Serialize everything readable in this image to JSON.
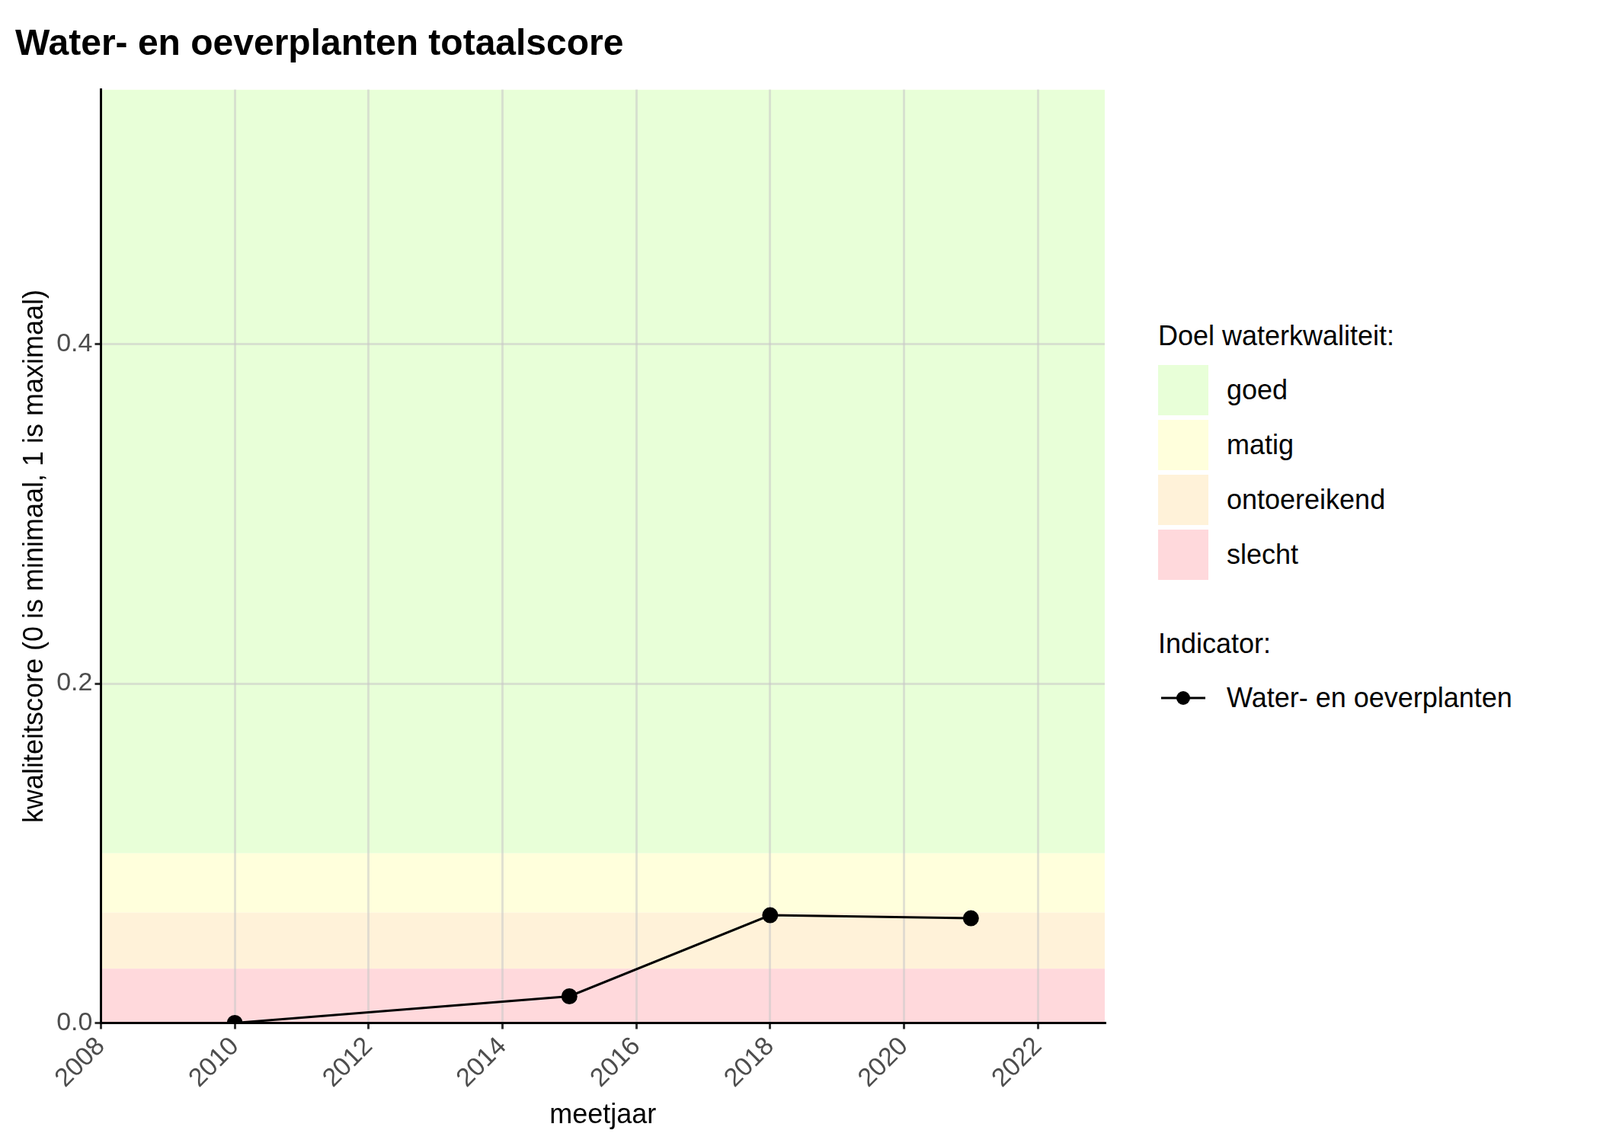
{
  "chart_data": {
    "type": "line",
    "title": "Water- en oeverplanten totaalscore",
    "x_label": "meetjaar",
    "y_label": "kwaliteitscore (0 is minimaal, 1 is maximaal)",
    "x": [
      2010,
      2015,
      2018,
      2021
    ],
    "series": [
      {
        "name": "Water- en oeverplanten",
        "color": "#000000",
        "values": [
          0.0,
          0.0157,
          0.0635,
          0.0617
        ],
        "marker": "circle",
        "line_style": "solid"
      }
    ],
    "legend_title": "Indicator:",
    "bands_title": "Doel waterkwaliteit:",
    "bands": [
      {
        "name": "goed",
        "color": "#e8ffd8",
        "from": 0.1,
        "to": 0.55
      },
      {
        "name": "matig",
        "color": "#ffffdc",
        "from": 0.065,
        "to": 0.1
      },
      {
        "name": "ontoereikend",
        "color": "#fff2d9",
        "from": 0.032,
        "to": 0.065
      },
      {
        "name": "slecht",
        "color": "#ffd9dc",
        "from": 0.0,
        "to": 0.032
      }
    ],
    "xlim": [
      2008,
      2023
    ],
    "xticks": [
      2008,
      2010,
      2012,
      2014,
      2016,
      2018,
      2020,
      2022
    ],
    "ylim": [
      0,
      0.55
    ],
    "yticks": [
      {
        "value": 0,
        "label": "0.0"
      },
      {
        "value": 0.2,
        "label": "0.2"
      },
      {
        "value": 0.4,
        "label": "0.4"
      }
    ],
    "grid": true,
    "legend": "right"
  }
}
